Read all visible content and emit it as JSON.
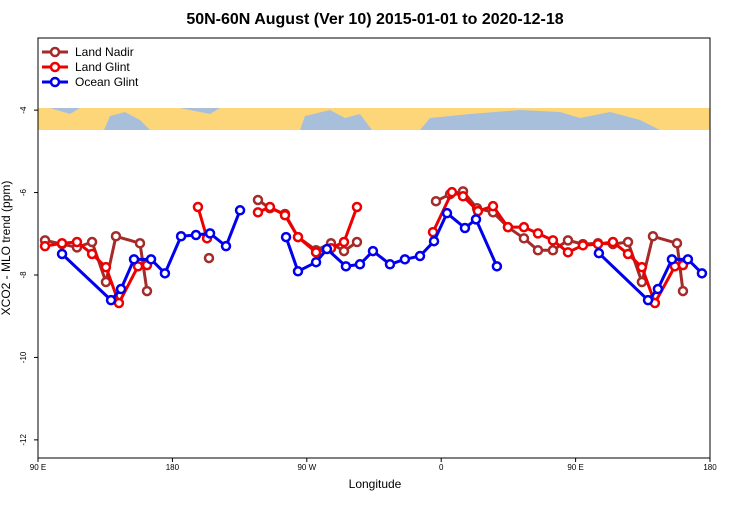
{
  "chart_data": {
    "type": "line",
    "title": "50N-60N August (Ver 10)   2015-01-01 to 2020-12-18",
    "x_label": "Longitude",
    "y_label": "XCO2 - MLO trend (ppm)",
    "xlim": [
      90,
      540
    ],
    "xticks": [
      {
        "value": 90,
        "label": "90 E"
      },
      180,
      {
        "value": 270,
        "label": "90 W"
      },
      {
        "value": 360,
        "label": "0"
      },
      {
        "value": 450,
        "label": "90 E"
      },
      {
        "value": 540,
        "label": "180"
      }
    ],
    "ylim": [
      -12.44,
      -2.25
    ],
    "yticks": [
      -4,
      -6,
      -8,
      -10,
      -12
    ],
    "legend": "top-left",
    "series": [
      {
        "name": "Land Nadir",
        "color": "#a52a2a",
        "x": [
          94.7,
          106.1,
          116.1,
          126.2,
          135.5,
          142.2,
          158.3,
          163.0,
          null,
          204.5,
          null,
          237.3,
          245.3,
          255.4,
          264.1,
          276.2,
          286.2,
          294.9,
          303.6,
          null,
          356.5,
          365.9,
          374.6,
          384.0,
          394.7,
          404.7,
          415.4,
          424.8,
          434.8,
          444.9,
          454.9,
          465.0,
          475.0,
          485.1,
          494.4,
          501.8,
          517.9,
          521.9
        ],
        "values": [
          -7.16,
          -7.25,
          -7.33,
          -7.2,
          -8.17,
          -7.06,
          -7.23,
          -8.39,
          null,
          -7.59,
          null,
          -6.18,
          -6.38,
          -6.52,
          -7.08,
          -7.4,
          -7.23,
          -7.42,
          -7.2,
          null,
          -6.21,
          -6.04,
          -5.97,
          -6.38,
          -6.48,
          -6.84,
          -7.11,
          -7.4,
          -7.4,
          -7.16,
          -7.25,
          -7.23,
          -7.25,
          -7.2,
          -8.17,
          -7.06,
          -7.23,
          -8.39
        ]
      },
      {
        "name": "Land Glint",
        "color": "#ee0000",
        "x": [
          94.7,
          106.1,
          116.1,
          126.2,
          135.5,
          144.2,
          157.0,
          163.0,
          null,
          197.1,
          203.2,
          null,
          237.3,
          245.3,
          255.4,
          264.1,
          276.2,
          286.2,
          294.9,
          303.6,
          null,
          354.5,
          367.2,
          374.6,
          384.6,
          394.7,
          404.7,
          415.4,
          424.8,
          434.8,
          444.9,
          454.9,
          465.0,
          475.0,
          485.1,
          494.4,
          503.1,
          516.5,
          521.9
        ],
        "values": [
          -7.3,
          -7.23,
          -7.2,
          -7.49,
          -7.81,
          -8.68,
          -7.79,
          -7.76,
          null,
          -6.35,
          -7.11,
          null,
          -6.48,
          -6.35,
          -6.55,
          -7.08,
          -7.45,
          -7.35,
          -7.2,
          -6.35,
          null,
          -6.96,
          -5.99,
          -6.09,
          -6.45,
          -6.33,
          -6.84,
          -6.84,
          -6.99,
          -7.16,
          -7.45,
          -7.28,
          -7.25,
          -7.2,
          -7.49,
          -7.81,
          -8.68,
          -7.79,
          -7.76
        ]
      },
      {
        "name": "Ocean Glint",
        "color": "#0000ee",
        "x": [
          106.1,
          138.9,
          145.6,
          154.3,
          165.7,
          175.0,
          185.8,
          195.8,
          205.2,
          215.9,
          225.3,
          null,
          256.1,
          264.1,
          276.2,
          283.5,
          296.2,
          305.6,
          314.3,
          325.7,
          335.7,
          345.8,
          355.2,
          363.9,
          375.9,
          383.3,
          397.3,
          null,
          465.6,
          498.5,
          505.1,
          514.5,
          525.2,
          534.6
        ],
        "values": [
          -7.49,
          -8.61,
          -8.34,
          -7.62,
          -7.62,
          -7.96,
          -7.06,
          -7.03,
          -6.99,
          -7.3,
          -6.43,
          null,
          -7.08,
          -7.91,
          -7.69,
          -7.37,
          -7.79,
          -7.74,
          -7.42,
          -7.74,
          -7.62,
          -7.54,
          -7.18,
          -6.5,
          -6.86,
          -6.65,
          -7.79,
          null,
          -7.47,
          -8.61,
          -8.34,
          -7.62,
          -7.62,
          -7.96
        ]
      }
    ]
  }
}
